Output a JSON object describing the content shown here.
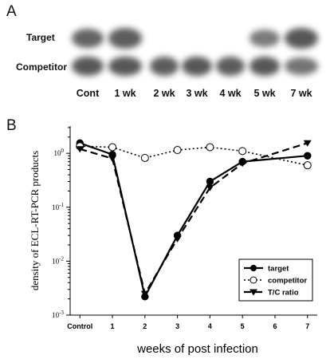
{
  "panel_a": {
    "letter": "A",
    "row_labels": {
      "target": "Target",
      "competitor": "Competitor"
    },
    "lanes": [
      {
        "label": "Cont",
        "target": 0.75,
        "competitor": 0.85
      },
      {
        "label": "1 wk",
        "target": 0.8,
        "competitor": 0.85
      },
      {
        "label": "2 wk",
        "target": 0,
        "competitor": 0.8
      },
      {
        "label": "3 wk",
        "target": 0,
        "competitor": 0.85
      },
      {
        "label": "4 wk",
        "target": 0,
        "competitor": 0.8
      },
      {
        "label": "5 wk",
        "target": 0.55,
        "competitor": 0.85
      },
      {
        "label": "7 wk",
        "target": 0.85,
        "competitor": 0.6
      }
    ]
  },
  "panel_b": {
    "letter": "B"
  },
  "chart_data": {
    "type": "line",
    "xlabel": "weeks of post infection",
    "ylabel": "density of ECL-RT-PCR products",
    "x_ticks": [
      "Control",
      "1",
      "2",
      "3",
      "4",
      "5",
      "6",
      "7"
    ],
    "x_tick_values": [
      0,
      1,
      2,
      3,
      4,
      5,
      6,
      7
    ],
    "xlim": [
      -0.3,
      7.3
    ],
    "y_scale": "log",
    "ylim": [
      0.001,
      3.2
    ],
    "y_ticks": [
      {
        "base": "10",
        "exp": "0",
        "value": 1
      },
      {
        "base": "10",
        "exp": "-1",
        "value": 0.1
      },
      {
        "base": "10",
        "exp": "-2",
        "value": 0.01
      },
      {
        "base": "10",
        "exp": "-3",
        "value": 0.001
      }
    ],
    "legend_position": "bottom-right",
    "series": [
      {
        "name": "target",
        "marker": "filled-circle",
        "dash": "solid",
        "x": [
          0,
          1,
          2,
          3,
          4,
          5,
          7
        ],
        "y": [
          1.55,
          0.95,
          0.0022,
          0.03,
          0.3,
          0.7,
          0.9
        ]
      },
      {
        "name": "competitor",
        "marker": "open-circle",
        "dash": "dotted",
        "x": [
          0,
          1,
          2,
          3,
          4,
          5,
          7
        ],
        "y": [
          1.35,
          1.3,
          0.82,
          1.15,
          1.3,
          1.1,
          0.6
        ]
      },
      {
        "name": "T/C ratio",
        "marker": "filled-triangle-down",
        "dash": "dashed",
        "x": [
          0,
          1,
          2,
          3,
          4,
          5,
          7
        ],
        "y": [
          1.2,
          0.8,
          0.0025,
          0.026,
          0.23,
          0.65,
          1.55
        ]
      }
    ]
  }
}
